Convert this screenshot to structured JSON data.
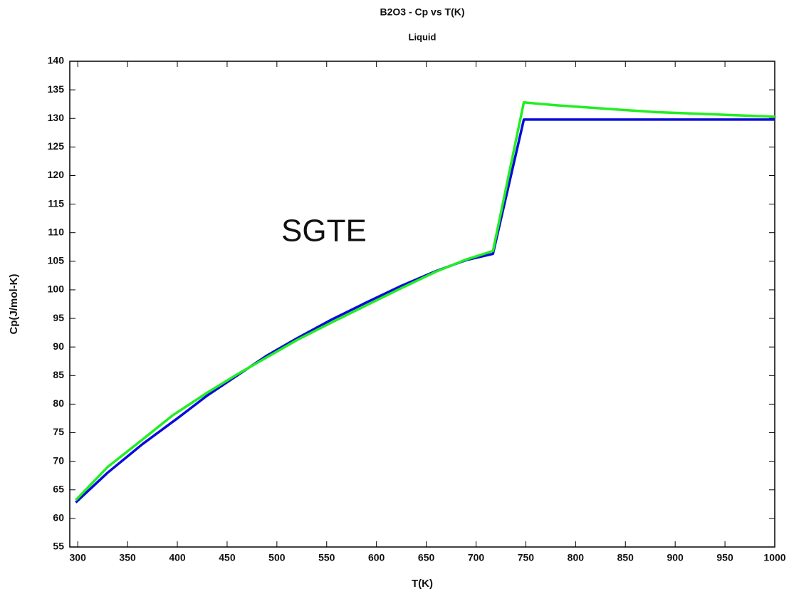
{
  "chart_data": {
    "type": "line",
    "title": "B2O3 - Cp vs T(K)",
    "subtitle": "Liquid",
    "x_label": "T(K)",
    "y_label": "Cp(J/mol-K)",
    "annotation": "SGTE",
    "annotation_color": "#00ee55",
    "xlim": [
      292,
      1000
    ],
    "xticks": [
      300,
      350,
      400,
      450,
      500,
      550,
      600,
      650,
      700,
      750,
      800,
      850,
      900,
      950,
      1000
    ],
    "ylim": [
      55,
      140
    ],
    "yticks": [
      55,
      60,
      65,
      70,
      75,
      80,
      85,
      90,
      95,
      100,
      105,
      110,
      115,
      120,
      125,
      130,
      135,
      140
    ],
    "grid": false,
    "series": [
      {
        "color": "#0a0adc",
        "x": [
          298,
          330,
          365,
          400,
          430,
          460,
          490,
          520,
          555,
          590,
          625,
          660,
          690,
          717,
          748,
          1000
        ],
        "values": [
          62.8,
          68,
          73,
          77.5,
          81.5,
          85,
          88.5,
          91.5,
          94.8,
          97.8,
          100.7,
          103.3,
          105.2,
          106.3,
          129.8,
          129.8
        ]
      },
      {
        "color": "#22ee22",
        "x": [
          298,
          330,
          365,
          395,
          430,
          460,
          490,
          520,
          555,
          590,
          625,
          660,
          690,
          717,
          748,
          780,
          830,
          880,
          940,
          1000
        ],
        "values": [
          63.2,
          69,
          73.8,
          78,
          82,
          85.2,
          88.2,
          91.2,
          94.3,
          97.3,
          100.3,
          103.2,
          105.3,
          106.8,
          132.8,
          132.3,
          131.7,
          131.1,
          130.7,
          130.3
        ]
      }
    ]
  }
}
